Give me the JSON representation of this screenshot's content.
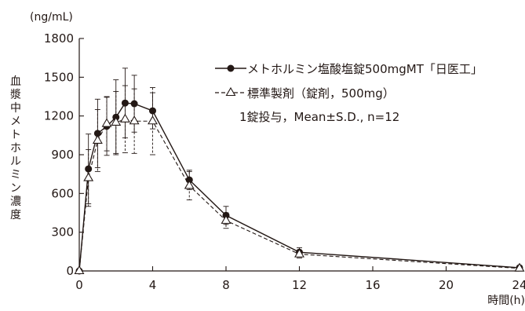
{
  "chart_data": {
    "type": "line",
    "yunit": "(ng/mL)",
    "ylabel": "血漿中メトホルミン濃度",
    "xlabel": "時間(h)",
    "xlim": [
      0,
      24
    ],
    "ylim": [
      0,
      1800
    ],
    "xticks": [
      0,
      4,
      8,
      12,
      16,
      20,
      24
    ],
    "yticks": [
      0,
      300,
      600,
      900,
      1200,
      1500,
      1800
    ],
    "grid": false,
    "legend_position": "top-right",
    "annotation": "1錠投与，Mean±S.D., n=12",
    "series": [
      {
        "name": "メトホルミン塩酸塩錠500mgMT「日医工」",
        "marker": "filled-circle",
        "line_style": "solid",
        "x": [
          0,
          0.5,
          1,
          1.5,
          2,
          2.5,
          3,
          4,
          6,
          8,
          12,
          24
        ],
        "y": [
          0,
          790,
          1065,
          1120,
          1190,
          1300,
          1295,
          1240,
          705,
          430,
          145,
          25
        ],
        "sd": [
          0,
          270,
          265,
          225,
          290,
          270,
          220,
          140,
          75,
          70,
          35,
          15
        ]
      },
      {
        "name": "標準製剤（錠剤，500mg）",
        "marker": "open-triangle",
        "line_style": "dashed",
        "x": [
          0,
          0.5,
          1,
          1.5,
          2,
          2.5,
          3,
          4,
          6,
          8,
          12,
          24
        ],
        "y": [
          0,
          720,
          1010,
          1140,
          1150,
          1175,
          1160,
          1160,
          660,
          390,
          130,
          20
        ],
        "sd": [
          0,
          220,
          240,
          210,
          240,
          260,
          250,
          260,
          110,
          60,
          30,
          10
        ]
      }
    ]
  }
}
